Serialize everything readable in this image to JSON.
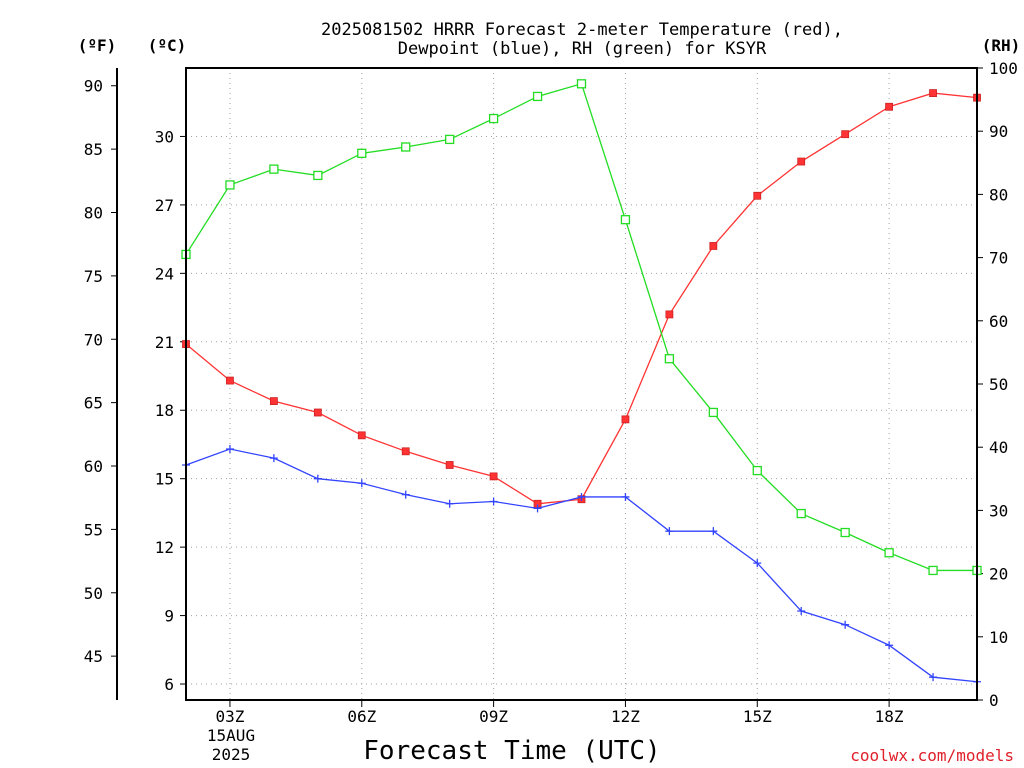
{
  "chart_data": {
    "type": "line",
    "title": [
      "2025081502 HRRR Forecast 2-meter Temperature (red),",
      "Dewpoint (blue), RH (green) for KSYR"
    ],
    "xlabel": "Forecast Time (UTC)",
    "credit": "coolwx.com/models",
    "axis_units": {
      "fahrenheit": "(ºF)",
      "celsius": "(ºC)",
      "rh": "(RH)"
    },
    "x_ticks": [
      {
        "hour": 3,
        "label": "03Z"
      },
      {
        "hour": 6,
        "label": "06Z"
      },
      {
        "hour": 9,
        "label": "09Z"
      },
      {
        "hour": 12,
        "label": "12Z"
      },
      {
        "hour": 15,
        "label": "15Z"
      },
      {
        "hour": 18,
        "label": "18Z"
      }
    ],
    "date_label": [
      "15AUG",
      "2025"
    ],
    "xlim": [
      2,
      20
    ],
    "ylim_celsius": [
      5.3,
      33.0
    ],
    "ylim_rh": [
      0,
      100
    ],
    "fahrenheit_ticks": [
      45,
      50,
      55,
      60,
      65,
      70,
      75,
      80,
      85,
      90
    ],
    "celsius_ticks": [
      6,
      9,
      12,
      15,
      18,
      21,
      24,
      27,
      30
    ],
    "rh_ticks": [
      0,
      10,
      20,
      30,
      40,
      50,
      60,
      70,
      80,
      90,
      100
    ],
    "x": [
      2,
      3,
      4,
      5,
      6,
      7,
      8,
      9,
      10,
      11,
      12,
      13,
      14,
      15,
      16,
      17,
      18,
      19,
      20
    ],
    "series": [
      {
        "name": "Temperature",
        "axis": "celsius",
        "color": "#ff3333",
        "marker": "filled-square",
        "values": [
          20.9,
          19.3,
          18.4,
          17.9,
          16.9,
          16.2,
          15.6,
          15.1,
          13.9,
          14.1,
          17.6,
          22.2,
          25.2,
          27.4,
          28.9,
          30.1,
          31.3,
          31.9,
          31.7
        ]
      },
      {
        "name": "Dewpoint",
        "axis": "celsius",
        "color": "#3344ff",
        "marker": "plus",
        "values": [
          15.6,
          16.3,
          15.9,
          15.0,
          14.8,
          14.3,
          13.9,
          14.0,
          13.7,
          14.2,
          14.2,
          12.7,
          12.7,
          11.3,
          9.2,
          8.6,
          7.7,
          6.3,
          6.1
        ]
      },
      {
        "name": "RH",
        "axis": "rh",
        "color": "#22dd22",
        "marker": "open-square",
        "values": [
          70.5,
          81.5,
          84.0,
          83.0,
          86.5,
          87.5,
          88.7,
          92.0,
          95.5,
          97.5,
          76.0,
          54.0,
          45.5,
          36.3,
          29.5,
          26.5,
          23.3,
          20.5,
          20.5
        ]
      }
    ]
  }
}
